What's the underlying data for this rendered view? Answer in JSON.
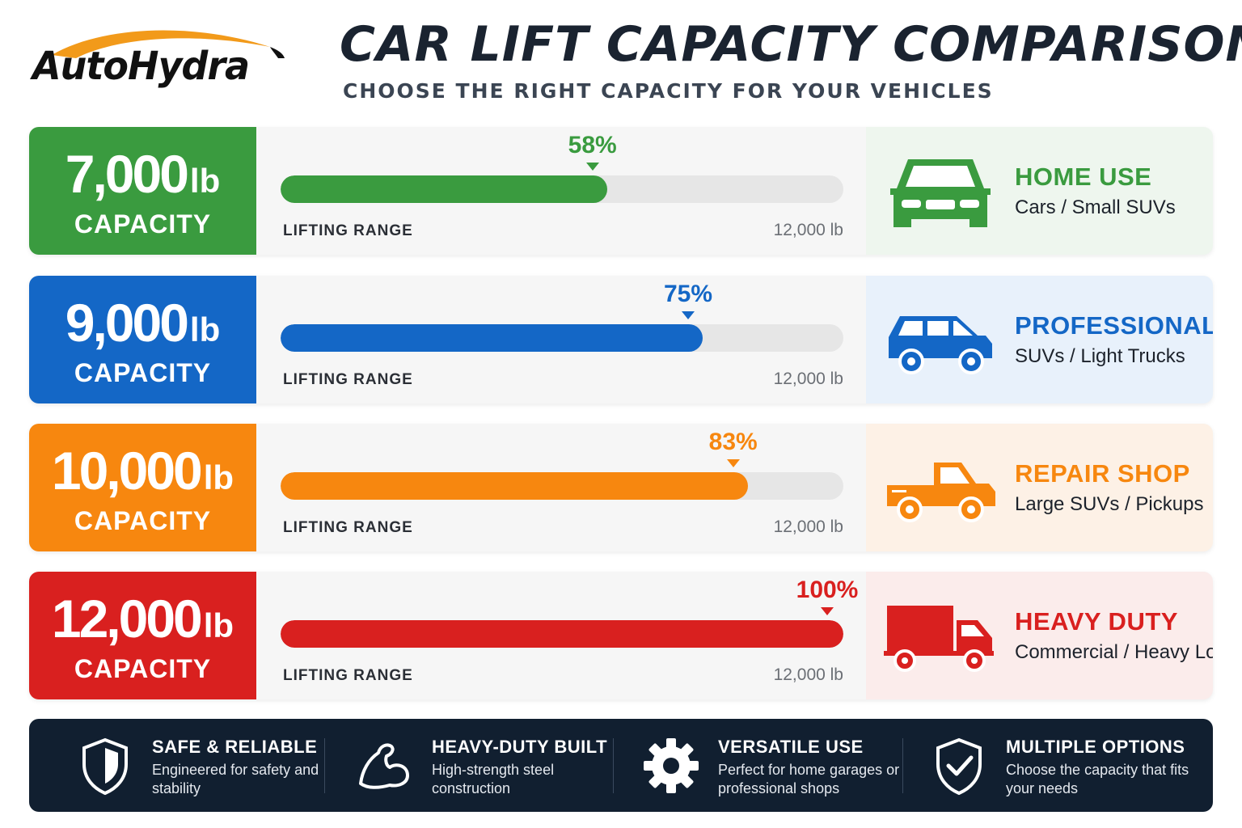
{
  "brand": {
    "name": "AutoHydra",
    "accent": "#f29a1a"
  },
  "header": {
    "title": "CAR LIFT CAPACITY COMPARISON",
    "subtitle": "CHOOSE THE RIGHT CAPACITY FOR YOUR VEHICLES"
  },
  "chart_data": {
    "type": "bar",
    "orientation": "horizontal",
    "title": "CAR LIFT CAPACITY COMPARISON",
    "categories": [
      "7,000 lb",
      "9,000 lb",
      "10,000 lb",
      "12,000 lb"
    ],
    "values": [
      58,
      75,
      83,
      100
    ],
    "value_unit": "%",
    "xlim": [
      0,
      100
    ],
    "range_max_label": "12,000 lb"
  },
  "rows": [
    {
      "capacity": "7,000",
      "unit": "lb",
      "cap_label": "CAPACITY",
      "percent": 58,
      "percent_label": "58%",
      "range_label": "LIFTING RANGE",
      "range_max": "12,000 lb",
      "use_title": "HOME USE",
      "use_sub": "Cars / Small SUVs",
      "icon": "car-icon",
      "color": "#3a9b3f",
      "light": "#eef6ee"
    },
    {
      "capacity": "9,000",
      "unit": "lb",
      "cap_label": "CAPACITY",
      "percent": 75,
      "percent_label": "75%",
      "range_label": "LIFTING RANGE",
      "range_max": "12,000 lb",
      "use_title": "PROFESSIONAL",
      "use_sub": "SUVs / Light Trucks",
      "icon": "suv-icon",
      "color": "#1467c6",
      "light": "#e8f1fb"
    },
    {
      "capacity": "10,000",
      "unit": "lb",
      "cap_label": "CAPACITY",
      "percent": 83,
      "percent_label": "83%",
      "range_label": "LIFTING RANGE",
      "range_max": "12,000 lb",
      "use_title": "REPAIR SHOP",
      "use_sub": "Large SUVs / Pickups",
      "icon": "pickup-truck-icon",
      "color": "#f7870f",
      "light": "#fdf1e6"
    },
    {
      "capacity": "12,000",
      "unit": "lb",
      "cap_label": "CAPACITY",
      "percent": 100,
      "percent_label": "100%",
      "range_label": "LIFTING RANGE",
      "range_max": "12,000 lb",
      "use_title": "HEAVY DUTY",
      "use_sub": "Commercial / Heavy Loads",
      "icon": "box-truck-icon",
      "color": "#d9201f",
      "light": "#fbeceb"
    }
  ],
  "features": [
    {
      "title": "SAFE & RELIABLE",
      "desc": "Engineered for safety and stability",
      "icon": "shield-icon"
    },
    {
      "title": "HEAVY-DUTY BUILT",
      "desc": "High-strength steel construction",
      "icon": "flexed-arm-icon"
    },
    {
      "title": "VERSATILE USE",
      "desc": "Perfect for home garages or professional shops",
      "icon": "gear-icon"
    },
    {
      "title": "MULTIPLE OPTIONS",
      "desc": "Choose the capacity that fits your needs",
      "icon": "shield-check-icon"
    }
  ]
}
